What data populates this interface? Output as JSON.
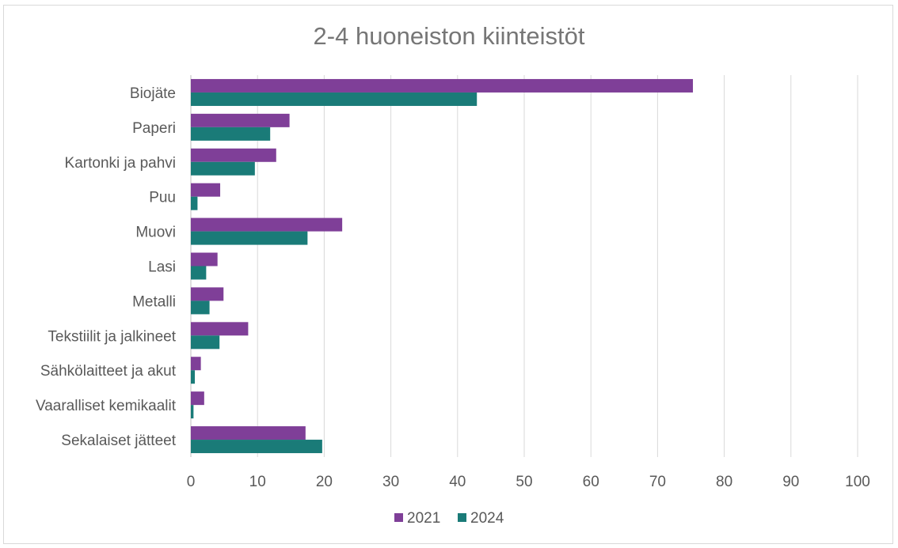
{
  "chart_data": {
    "type": "bar",
    "orientation": "horizontal",
    "title": "2-4 huoneiston kiinteistöt",
    "categories": [
      "Biojäte",
      "Paperi",
      "Kartonki ja pahvi",
      "Puu",
      "Muovi",
      "Lasi",
      "Metalli",
      "Tekstiilit ja jalkineet",
      "Sähkölaitteet ja akut",
      "Vaaralliset kemikaalit",
      "Sekalaiset jätteet"
    ],
    "series": [
      {
        "name": "2021",
        "color": "#7f3f98",
        "values": [
          75.3,
          14.8,
          12.8,
          4.4,
          22.7,
          4.0,
          4.9,
          8.6,
          1.5,
          2.0,
          17.2
        ]
      },
      {
        "name": "2024",
        "color": "#1a7b78",
        "values": [
          42.9,
          11.9,
          9.6,
          1.0,
          17.5,
          2.3,
          2.8,
          4.3,
          0.6,
          0.4,
          19.7
        ]
      }
    ],
    "xlim": [
      0,
      100
    ],
    "xticks": [
      "0",
      "10",
      "20",
      "30",
      "40",
      "50",
      "60",
      "70",
      "80",
      "90",
      "100"
    ],
    "grid": "vertical",
    "legend_position": "bottom"
  }
}
